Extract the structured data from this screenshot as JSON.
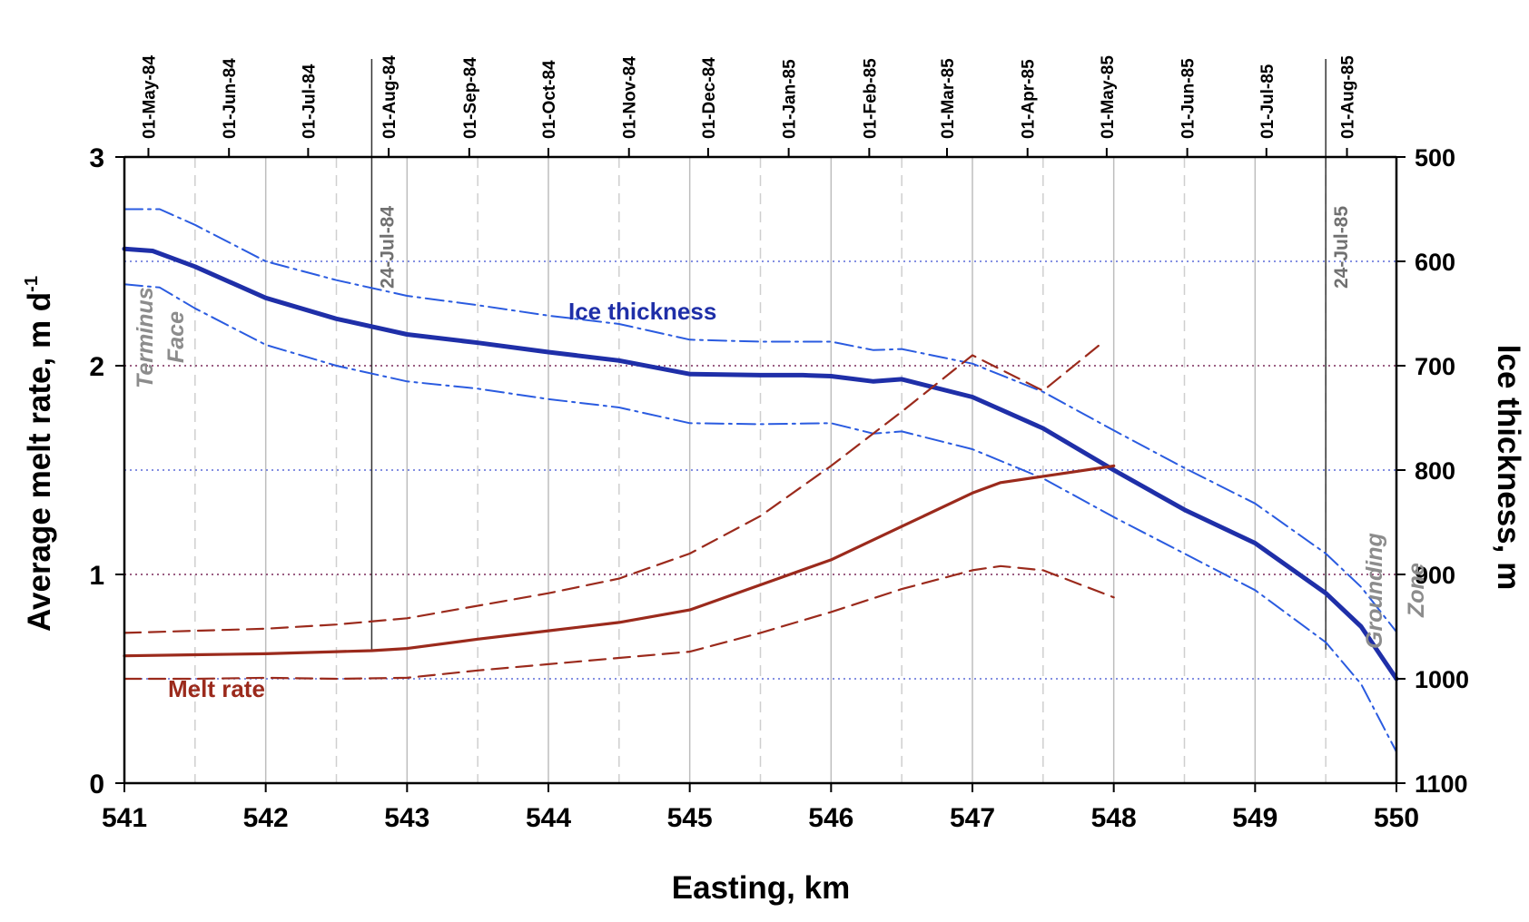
{
  "chart_data": {
    "type": "line",
    "xlabel": "Easting, km",
    "ylabel_left": "Average melt rate, m d",
    "ylabel_left_sup": "-1",
    "ylabel_right": "Ice thickness, m",
    "xlim": [
      541,
      550
    ],
    "ylim_left": [
      0,
      3
    ],
    "ylim_right": [
      1100,
      500
    ],
    "x_ticks": [
      "541",
      "542",
      "543",
      "544",
      "545",
      "546",
      "547",
      "548",
      "549",
      "550"
    ],
    "y_ticks_left": [
      "0",
      "1",
      "2",
      "3"
    ],
    "y_ticks_right": [
      "500",
      "600",
      "700",
      "800",
      "900",
      "1000",
      "1100"
    ],
    "top_axis_dates": [
      {
        "label": "01-May-84",
        "x": 541.17
      },
      {
        "label": "01-Jun-84",
        "x": 541.74
      },
      {
        "label": "01-Jul-84",
        "x": 542.3
      },
      {
        "label": "01-Aug-84",
        "x": 542.87
      },
      {
        "label": "01-Sep-84",
        "x": 543.44
      },
      {
        "label": "01-Oct-84",
        "x": 544.0
      },
      {
        "label": "01-Nov-84",
        "x": 544.57
      },
      {
        "label": "01-Dec-84",
        "x": 545.13
      },
      {
        "label": "01-Jan-85",
        "x": 545.7
      },
      {
        "label": "01-Feb-85",
        "x": 546.27
      },
      {
        "label": "01-Mar-85",
        "x": 546.82
      },
      {
        "label": "01-Apr-85",
        "x": 547.39
      },
      {
        "label": "01-May-85",
        "x": 547.95
      },
      {
        "label": "01-Jun-85",
        "x": 548.52
      },
      {
        "label": "01-Jul-85",
        "x": 549.08
      },
      {
        "label": "01-Aug-85",
        "x": 549.65
      }
    ],
    "reference_lines": [
      {
        "label": "24-Jul-84",
        "x": 542.75
      },
      {
        "label": "24-Jul-85",
        "x": 549.5
      }
    ],
    "annotations": {
      "terminus_1": "Terminus",
      "terminus_2": "Face",
      "grounding_1": "Grounding",
      "grounding_2": "Zone",
      "ice_label": "Ice thickness",
      "melt_label": "Melt rate"
    },
    "series": [
      {
        "name": "Ice thickness",
        "axis": "right",
        "style": "solid-thick",
        "color": "#1f2fa8",
        "x": [
          541.0,
          541.2,
          541.5,
          542.0,
          542.5,
          543.0,
          543.5,
          544.0,
          544.5,
          545.0,
          545.5,
          545.8,
          546.0,
          546.3,
          546.5,
          547.0,
          547.5,
          548.0,
          548.5,
          549.0,
          549.5,
          549.75,
          550.0
        ],
        "y": [
          588,
          590,
          605,
          635,
          655,
          670,
          678,
          687,
          695,
          708,
          709,
          709,
          710,
          715,
          713,
          730,
          760,
          800,
          838,
          870,
          918,
          950,
          1000
        ]
      },
      {
        "name": "Ice thickness upper bound",
        "axis": "right",
        "style": "dashdot",
        "color": "#2a5be0",
        "x": [
          541.0,
          541.25,
          541.5,
          542.0,
          542.5,
          543.0,
          543.5,
          544.0,
          544.5,
          545.0,
          545.5,
          546.0,
          546.3,
          546.5,
          547.0,
          547.5,
          548.0,
          548.5,
          549.0,
          549.5,
          549.75,
          550.0
        ],
        "y": [
          550,
          550,
          565,
          600,
          618,
          633,
          642,
          652,
          660,
          675,
          677,
          677,
          685,
          684,
          698,
          725,
          762,
          798,
          832,
          880,
          912,
          955
        ]
      },
      {
        "name": "Ice thickness lower bound",
        "axis": "right",
        "style": "dashdot",
        "color": "#2a5be0",
        "x": [
          541.0,
          541.25,
          541.5,
          542.0,
          542.5,
          543.0,
          543.5,
          544.0,
          544.5,
          545.0,
          545.5,
          546.0,
          546.3,
          546.5,
          547.0,
          547.5,
          548.0,
          548.5,
          549.0,
          549.5,
          549.75,
          550.0
        ],
        "y": [
          622,
          625,
          645,
          680,
          700,
          715,
          722,
          732,
          740,
          755,
          756,
          755,
          765,
          763,
          780,
          808,
          845,
          880,
          915,
          965,
          1005,
          1070
        ]
      },
      {
        "name": "Melt rate",
        "axis": "left",
        "style": "solid",
        "color": "#9b2a1c",
        "x": [
          541.0,
          541.5,
          542.0,
          542.5,
          542.75,
          543.0,
          543.5,
          544.0,
          544.5,
          545.0,
          545.5,
          546.0,
          546.5,
          547.0,
          547.2,
          547.5,
          548.0
        ],
        "y": [
          0.61,
          0.615,
          0.62,
          0.63,
          0.635,
          0.645,
          0.69,
          0.73,
          0.77,
          0.83,
          0.95,
          1.07,
          1.23,
          1.39,
          1.44,
          1.47,
          1.52
        ]
      },
      {
        "name": "Melt rate upper bound",
        "axis": "left",
        "style": "dashed",
        "color": "#9b2a1c",
        "x": [
          541.0,
          541.5,
          542.0,
          542.5,
          543.0,
          543.5,
          544.0,
          544.5,
          545.0,
          545.5,
          546.0,
          546.5,
          547.0,
          547.5,
          547.9
        ],
        "y": [
          0.72,
          0.73,
          0.74,
          0.76,
          0.79,
          0.85,
          0.91,
          0.98,
          1.1,
          1.28,
          1.52,
          1.78,
          2.05,
          1.88,
          2.1
        ]
      },
      {
        "name": "Melt rate lower bound",
        "axis": "left",
        "style": "dashed",
        "color": "#9b2a1c",
        "x": [
          541.0,
          541.5,
          542.0,
          542.5,
          543.0,
          543.5,
          544.0,
          544.5,
          545.0,
          545.5,
          546.0,
          546.5,
          547.0,
          547.2,
          547.5,
          548.0
        ],
        "y": [
          0.5,
          0.5,
          0.505,
          0.5,
          0.505,
          0.54,
          0.57,
          0.6,
          0.63,
          0.72,
          0.82,
          0.93,
          1.02,
          1.04,
          1.02,
          0.89
        ]
      }
    ],
    "colors": {
      "blue": "#1f2fa8",
      "blue_dashdot": "#2a5be0",
      "red": "#9b2a1c",
      "grid_gray": "#bdbdbd",
      "annotation_gray": "#8c8c8c"
    }
  }
}
